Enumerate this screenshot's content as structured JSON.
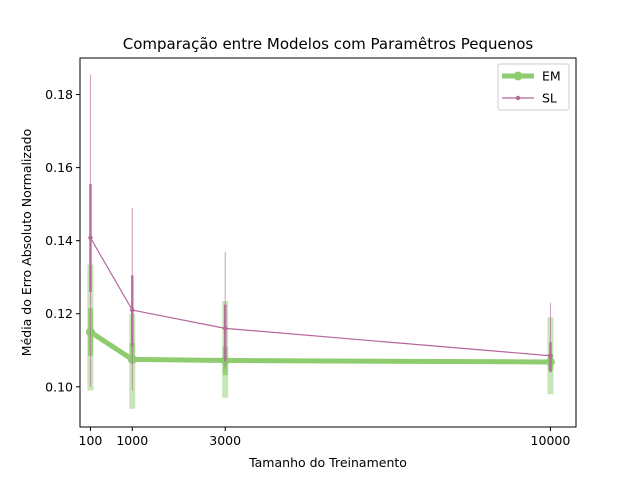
{
  "chart_data": {
    "type": "line",
    "title": "Comparação entre Modelos com Paramêtros Pequenos",
    "xlabel": "Tamanho do Treinamento",
    "ylabel": "Média do Erro Absoluto Normalizado",
    "xlim": [
      -125,
      10550
    ],
    "ylim": [
      0.089,
      0.19
    ],
    "xticks": [
      100,
      1000,
      3000,
      10000
    ],
    "xtick_labels": [
      "100",
      "1000",
      "3000",
      "10000"
    ],
    "yticks": [
      0.1,
      0.12,
      0.14,
      0.16,
      0.18
    ],
    "ytick_labels": [
      "0.10",
      "0.12",
      "0.14",
      "0.16",
      "0.18"
    ],
    "grid": false,
    "legend_position": "top-right",
    "series": [
      {
        "name": "EM",
        "color": "#8fcc6f",
        "x": [
          100,
          1000,
          3000,
          10000
        ],
        "y": [
          0.115,
          0.1075,
          0.1072,
          0.1068
        ],
        "err_inner": [
          [
            0.1085,
            0.1215
          ],
          [
            0.107,
            0.112
          ],
          [
            0.1032,
            0.111
          ],
          [
            0.1045,
            0.109
          ]
        ],
        "err_outer": [
          [
            0.099,
            0.1335
          ],
          [
            0.094,
            0.12
          ],
          [
            0.097,
            0.1235
          ],
          [
            0.098,
            0.119
          ]
        ]
      },
      {
        "name": "SL",
        "color": "#b5679b",
        "x": [
          100,
          1000,
          3000,
          10000
        ],
        "y": [
          0.1408,
          0.121,
          0.116,
          0.1085
        ],
        "err_inner": [
          [
            0.126,
            0.1555
          ],
          [
            0.111,
            0.1305
          ],
          [
            0.107,
            0.1225
          ],
          [
            0.104,
            0.1122
          ]
        ],
        "err_outer": [
          [
            0.1,
            0.1855
          ],
          [
            0.099,
            0.149
          ],
          [
            0.105,
            0.137
          ],
          [
            0.105,
            0.123
          ]
        ]
      }
    ]
  }
}
